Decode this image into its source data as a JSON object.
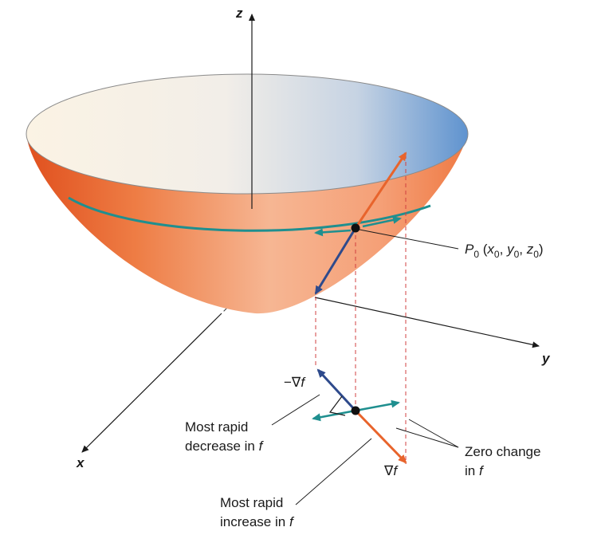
{
  "axes": {
    "x_label": "x",
    "y_label": "y",
    "z_label": "z"
  },
  "point_label": {
    "name": "P",
    "name_sub": "0",
    "open": " (",
    "x": "x",
    "x_sub": "0",
    "sep1": ", ",
    "y": "y",
    "y_sub": "0",
    "sep2": ", ",
    "z": "z",
    "z_sub": "0",
    "close": ")"
  },
  "gradient_labels": {
    "neg_grad": "−∇",
    "neg_grad_f": "f",
    "grad": "∇",
    "grad_f": "f"
  },
  "annotations": {
    "decrease_line1": "Most rapid",
    "decrease_line2": "decrease in ",
    "decrease_f": "f",
    "increase_line1": "Most rapid",
    "increase_line2": "increase in ",
    "increase_f": "f",
    "zero_line1": "Zero change",
    "zero_line2": "in ",
    "zero_f": "f"
  },
  "colors": {
    "surface_orange": "#e8642c",
    "rim_light": "#fbf3e4",
    "rim_blue": "#6a9ad0",
    "gradient_arrow": "#e8642c",
    "neg_gradient_arrow": "#2e4a8c",
    "level_curve": "#1f8f8f",
    "projection_dash": "#d04040"
  }
}
